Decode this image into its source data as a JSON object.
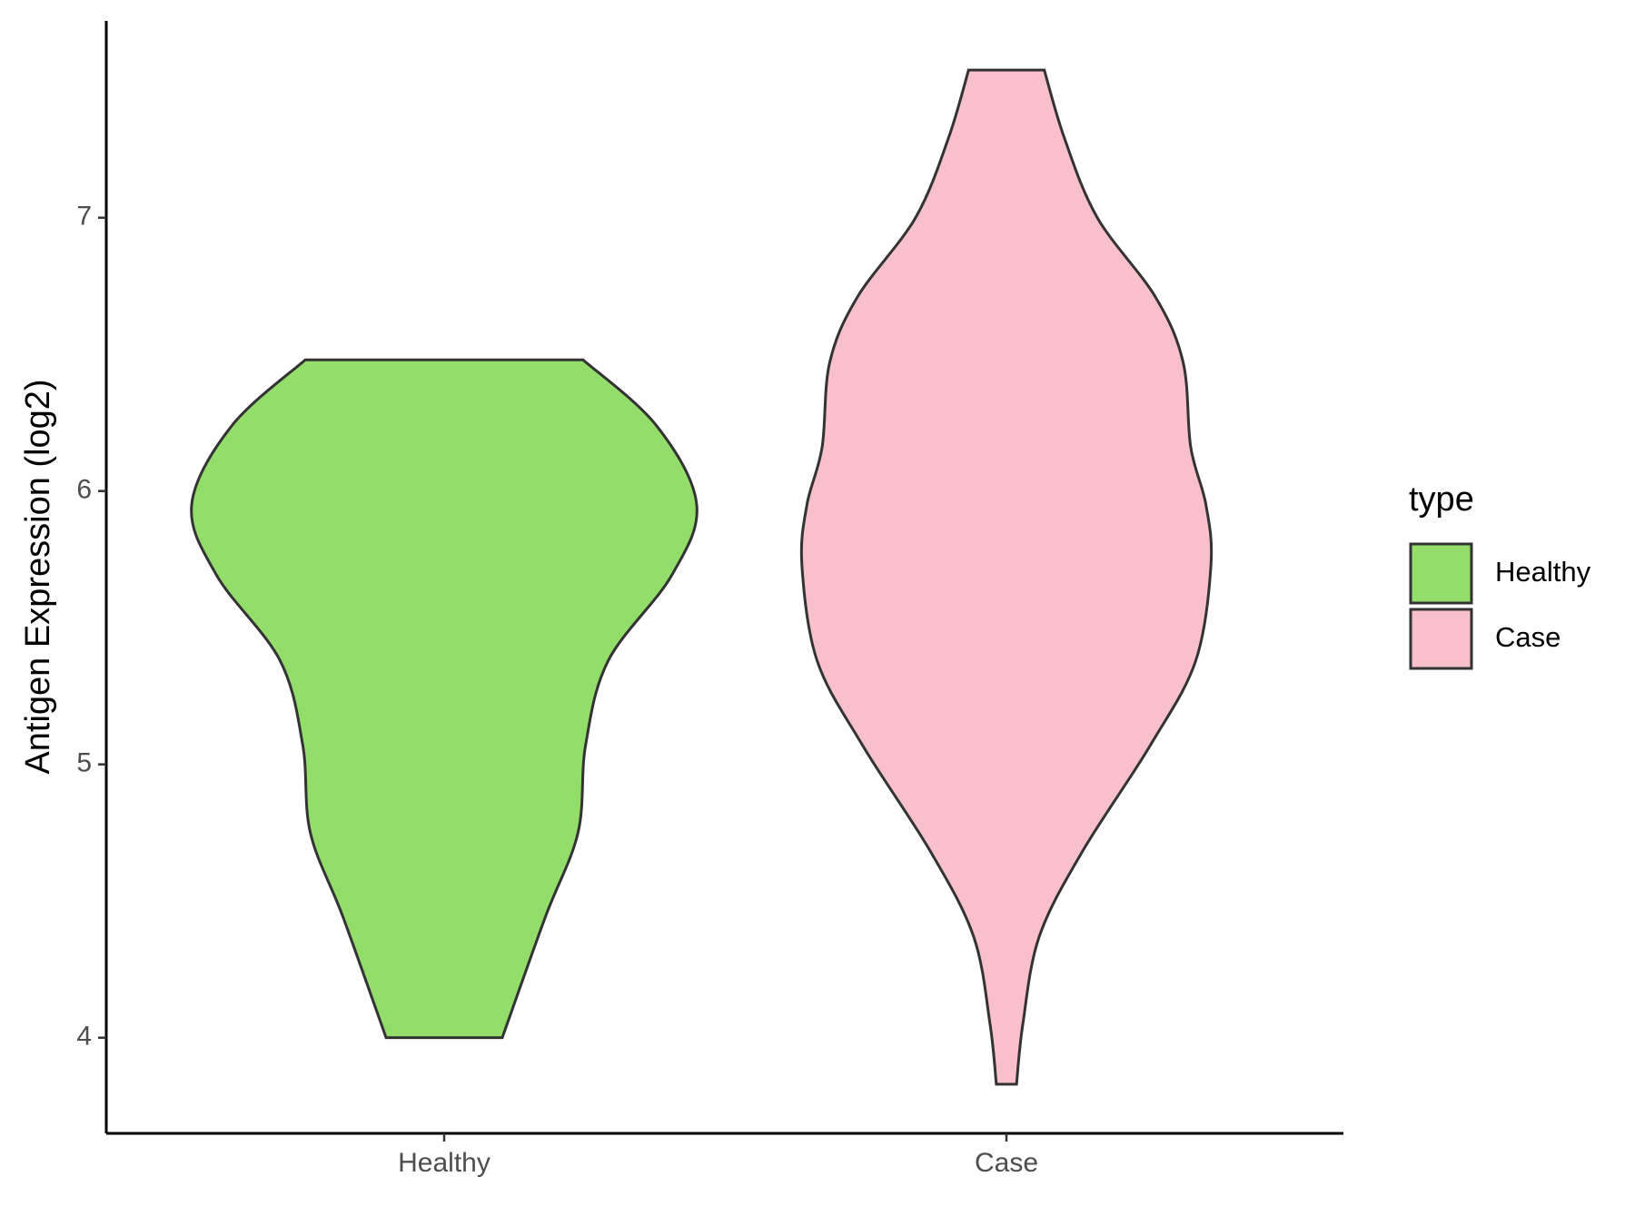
{
  "chart_data": {
    "type": "violin",
    "y_label": "Antigen Expression (log2)",
    "categories": [
      "Healthy",
      "Case"
    ],
    "legend_title": "type",
    "ylim": [
      3.65,
      7.72
    ],
    "yticks": [
      4,
      5,
      6,
      7
    ],
    "series": [
      {
        "name": "Healthy",
        "color": "#93dd6b",
        "y": [
          4.0,
          4.44,
          4.75,
          5.07,
          5.38,
          5.69,
          5.95,
          6.24,
          6.48
        ],
        "density": [
          0.23,
          0.4,
          0.53,
          0.56,
          0.65,
          0.9,
          1.0,
          0.84,
          0.55
        ]
      },
      {
        "name": "Case",
        "color": "#f7c0cb",
        "y": [
          3.83,
          4.05,
          4.37,
          4.68,
          5.07,
          5.38,
          5.73,
          5.95,
          6.16,
          6.47,
          6.71,
          7.0,
          7.29,
          7.54
        ],
        "density": [
          0.04,
          0.065,
          0.13,
          0.3,
          0.57,
          0.75,
          0.81,
          0.79,
          0.73,
          0.7,
          0.59,
          0.36,
          0.23,
          0.15
        ]
      }
    ]
  }
}
